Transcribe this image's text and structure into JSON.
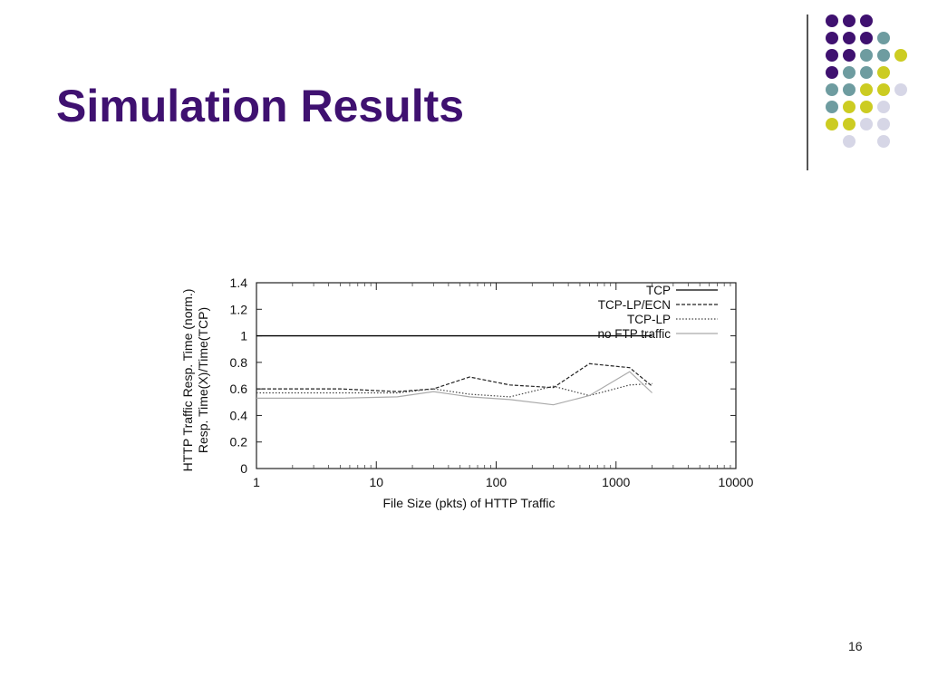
{
  "slide": {
    "title": "Simulation Results",
    "page_number": "16"
  },
  "decor": {
    "colors": {
      "purple": "#3f1170",
      "teal": "#6e9ca0",
      "yellow": "#cccc22",
      "lavender": "#d6d6e6"
    },
    "dot_grid": [
      [
        "purple",
        "purple",
        "purple",
        "",
        ""
      ],
      [
        "purple",
        "purple",
        "purple",
        "teal",
        ""
      ],
      [
        "purple",
        "purple",
        "teal",
        "teal",
        "yellow"
      ],
      [
        "purple",
        "teal",
        "teal",
        "yellow",
        ""
      ],
      [
        "teal",
        "teal",
        "yellow",
        "yellow",
        "lavender"
      ],
      [
        "teal",
        "yellow",
        "yellow",
        "lavender",
        ""
      ],
      [
        "yellow",
        "yellow",
        "lavender",
        "lavender",
        ""
      ],
      [
        "",
        "lavender",
        "",
        "lavender",
        ""
      ]
    ]
  },
  "chart_data": {
    "type": "line",
    "ylabel": "HTTP Traffic Resp. Time (norm.)",
    "ylabel2": "Resp. Time(X)/Time(TCP)",
    "xlabel": "File Size (pkts) of HTTP Traffic",
    "x_scale": "log",
    "xlim": [
      1,
      10000
    ],
    "ylim": [
      0,
      1.4
    ],
    "x_ticks": [
      "1",
      "10",
      "100",
      "1000",
      "10000"
    ],
    "y_ticks": [
      "0",
      "0.2",
      "0.4",
      "0.6",
      "0.8",
      "1",
      "1.2",
      "1.4"
    ],
    "legend_position": "top-right",
    "grid": false,
    "series": [
      {
        "name": "TCP",
        "style": "solid",
        "color": "#000000",
        "x": [
          1,
          2000
        ],
        "y": [
          1.0,
          1.0
        ]
      },
      {
        "name": "TCP-LP/ECN",
        "style": "dashed",
        "color": "#222222",
        "x": [
          1,
          5,
          15,
          30,
          60,
          130,
          300,
          600,
          1300,
          2000
        ],
        "y": [
          0.6,
          0.6,
          0.58,
          0.6,
          0.69,
          0.63,
          0.61,
          0.79,
          0.76,
          0.62
        ]
      },
      {
        "name": "TCP-LP",
        "style": "dotted",
        "color": "#444444",
        "x": [
          1,
          5,
          15,
          30,
          60,
          130,
          300,
          600,
          1300,
          2000
        ],
        "y": [
          0.57,
          0.57,
          0.57,
          0.6,
          0.56,
          0.54,
          0.62,
          0.55,
          0.63,
          0.64
        ]
      },
      {
        "name": "no FTP traffic",
        "style": "solid",
        "color": "#aaaaaa",
        "x": [
          1,
          5,
          15,
          30,
          60,
          130,
          300,
          600,
          1300,
          2000
        ],
        "y": [
          0.53,
          0.53,
          0.54,
          0.58,
          0.54,
          0.52,
          0.48,
          0.55,
          0.73,
          0.57
        ]
      }
    ]
  }
}
